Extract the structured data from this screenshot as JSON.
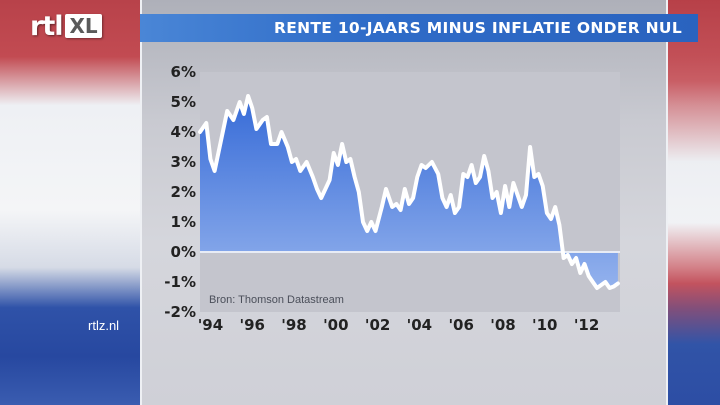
{
  "header": {
    "logo_primary": "rtl",
    "logo_secondary": "XL",
    "title": "RENTE 10-JAARS MINUS INFLATIE ONDER NUL"
  },
  "footer": {
    "site": "rtlz.nl"
  },
  "colors": {
    "title_bar": "#2f6cc8",
    "area_fill_top": "#2a63d8",
    "area_fill_bottom": "#8fb0f0",
    "line": "#ffffff",
    "zero_line": "#e8ecf5",
    "plot_background": "#c4c5cd"
  },
  "chart_data": {
    "type": "area",
    "title": "RENTE 10-JAARS MINUS INFLATIE ONDER NUL",
    "xlabel": "",
    "ylabel": "",
    "ylim": [
      -2,
      6
    ],
    "xlim": [
      1993.5,
      2013.6
    ],
    "y_ticks": [
      -2,
      -1,
      0,
      1,
      2,
      3,
      4,
      5,
      6
    ],
    "y_tick_labels": [
      "-2%",
      "-1%",
      "0%",
      "1%",
      "2%",
      "3%",
      "4%",
      "5%",
      "6%"
    ],
    "x_ticks": [
      1994,
      1996,
      1998,
      2000,
      2002,
      2004,
      2006,
      2008,
      2010,
      2012
    ],
    "x_tick_labels": [
      "'94",
      "'96",
      "'98",
      "'00",
      "'02",
      "'04",
      "'06",
      "'08",
      "'10",
      "'12"
    ],
    "grid": false,
    "source_note": "Bron: Thomson Datastream",
    "series": [
      {
        "x": [
          1993.5,
          1993.8,
          1994.0,
          1994.2,
          1994.5,
          1994.8,
          1995.1,
          1995.4,
          1995.6,
          1995.8,
          1996.0,
          1996.2,
          1996.5,
          1996.7,
          1996.9,
          1997.2,
          1997.4,
          1997.7,
          1997.9,
          1998.1,
          1998.3,
          1998.6,
          1998.9,
          1999.1,
          1999.3,
          1999.5,
          1999.7,
          1999.9,
          2000.1,
          2000.3,
          2000.5,
          2000.7,
          2000.9,
          2001.1,
          2001.3,
          2001.5,
          2001.7,
          2001.9,
          2002.2,
          2002.4,
          2002.7,
          2002.9,
          2003.1,
          2003.3,
          2003.5,
          2003.7,
          2003.9,
          2004.1,
          2004.3,
          2004.6,
          2004.9,
          2005.1,
          2005.3,
          2005.5,
          2005.7,
          2005.9,
          2006.1,
          2006.3,
          2006.5,
          2006.7,
          2006.9,
          2007.1,
          2007.3,
          2007.5,
          2007.7,
          2007.9,
          2008.1,
          2008.3,
          2008.5,
          2008.7,
          2008.9,
          2009.1,
          2009.3,
          2009.5,
          2009.7,
          2009.9,
          2010.1,
          2010.3,
          2010.5,
          2010.7,
          2010.9,
          2011.1,
          2011.3,
          2011.5,
          2011.7,
          2011.9,
          2012.1,
          2012.3,
          2012.5,
          2012.7,
          2012.9,
          2013.1,
          2013.3,
          2013.5
        ],
        "values": [
          4.0,
          4.3,
          3.1,
          2.7,
          3.7,
          4.7,
          4.4,
          5.0,
          4.6,
          5.2,
          4.8,
          4.1,
          4.4,
          4.5,
          3.6,
          3.6,
          4.0,
          3.5,
          3.0,
          3.1,
          2.7,
          3.0,
          2.5,
          2.1,
          1.8,
          2.1,
          2.4,
          3.3,
          2.9,
          3.6,
          3.0,
          3.1,
          2.5,
          2.0,
          1.0,
          0.7,
          1.0,
          0.7,
          1.5,
          2.1,
          1.5,
          1.6,
          1.4,
          2.1,
          1.6,
          1.8,
          2.5,
          2.9,
          2.8,
          3.0,
          2.6,
          1.8,
          1.5,
          1.9,
          1.3,
          1.5,
          2.6,
          2.5,
          2.9,
          2.3,
          2.5,
          3.2,
          2.7,
          1.8,
          2.0,
          1.3,
          2.2,
          1.5,
          2.3,
          1.9,
          1.5,
          1.9,
          3.5,
          2.5,
          2.6,
          2.2,
          1.3,
          1.1,
          1.5,
          0.9,
          -0.2,
          -0.1,
          -0.4,
          -0.2,
          -0.7,
          -0.4,
          -0.8,
          -1.0,
          -1.2,
          -1.1,
          -1.0,
          -1.2,
          -1.15,
          -1.05
        ]
      }
    ]
  }
}
